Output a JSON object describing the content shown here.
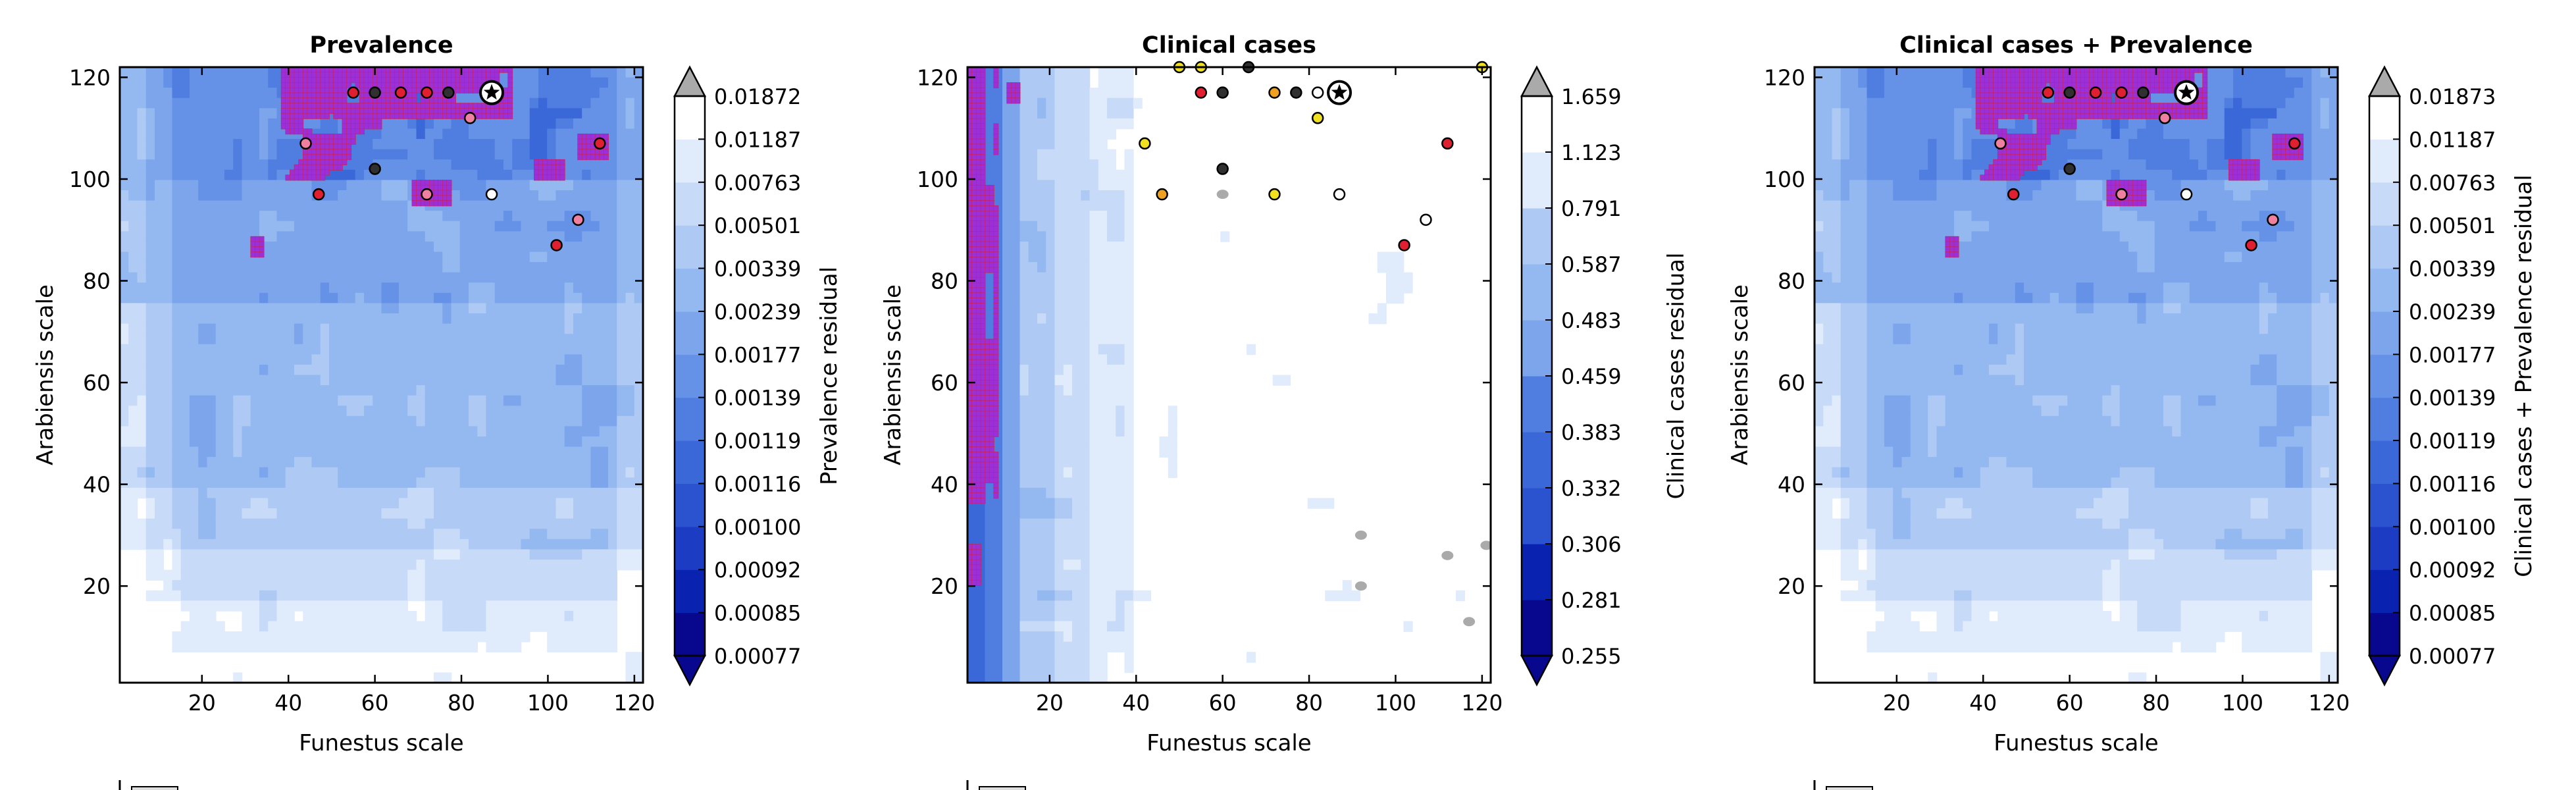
{
  "palette": [
    "#08088e",
    "#0a22b0",
    "#1c3cc4",
    "#2b53d0",
    "#3b68d8",
    "#4f7ee0",
    "#6592e6",
    "#7ca5ec",
    "#94b8f0",
    "#adc9f4",
    "#c7daf8",
    "#e0ebfb",
    "#ffffff"
  ],
  "colors": {
    "over_color": "#aaaaaa",
    "under_color": "#08088e",
    "region_fill": "#9b30d8",
    "region_edge": "#d0204a",
    "marker_yellow": "#f0e020",
    "marker_orange": "#f0a020",
    "marker_red": "#e02030",
    "marker_pink": "#f080a0",
    "marker_dark": "#303030",
    "marker_white": "#ffffff",
    "marker_gray": "#a0a0a0"
  },
  "chart_data": [
    {
      "type": "heatmap",
      "title": "Prevalence",
      "xlabel": "Funestus scale",
      "ylabel": "Arabiensis scale",
      "xlim": [
        1,
        122
      ],
      "ylim": [
        1,
        122
      ],
      "xticks": [
        "20",
        "40",
        "60",
        "80",
        "100",
        "120"
      ],
      "yticks": [
        "20",
        "40",
        "60",
        "80",
        "100",
        "120"
      ],
      "colorbar_label": "Prevalence residual",
      "colorbar_ticks": [
        "0.00077",
        "0.00085",
        "0.00092",
        "0.00100",
        "0.00116",
        "0.00119",
        "0.00139",
        "0.00177",
        "0.00239",
        "0.00339",
        "0.00501",
        "0.00763",
        "0.01187",
        "0.01872"
      ],
      "field": "prevalence",
      "best_fit": [
        87,
        117
      ],
      "markers": [
        {
          "x": 44,
          "y": 107,
          "c": "marker_pink"
        },
        {
          "x": 47,
          "y": 97,
          "c": "marker_red"
        },
        {
          "x": 55,
          "y": 117,
          "c": "marker_red"
        },
        {
          "x": 60,
          "y": 102,
          "c": "marker_dark"
        },
        {
          "x": 60,
          "y": 117,
          "c": "marker_dark"
        },
        {
          "x": 66,
          "y": 117,
          "c": "marker_red"
        },
        {
          "x": 72,
          "y": 97,
          "c": "marker_pink"
        },
        {
          "x": 77,
          "y": 117,
          "c": "marker_dark"
        },
        {
          "x": 82,
          "y": 112,
          "c": "marker_pink"
        },
        {
          "x": 87,
          "y": 97,
          "c": "marker_white"
        },
        {
          "x": 102,
          "y": 87,
          "c": "marker_red"
        },
        {
          "x": 107,
          "y": 92,
          "c": "marker_pink"
        },
        {
          "x": 112,
          "y": 107,
          "c": "marker_red"
        },
        {
          "x": 72,
          "y": 117,
          "c": "marker_red"
        }
      ],
      "legend_text": ""
    },
    {
      "type": "heatmap",
      "title": "Clinical cases",
      "xlabel": "Funestus scale",
      "ylabel": "Arabiensis scale",
      "xlim": [
        1,
        122
      ],
      "ylim": [
        1,
        122
      ],
      "xticks": [
        "20",
        "40",
        "60",
        "80",
        "100",
        "120"
      ],
      "yticks": [
        "20",
        "40",
        "60",
        "80",
        "100",
        "120"
      ],
      "colorbar_label": "Clinical cases residual",
      "colorbar_ticks": [
        "0.255",
        "0.281",
        "0.306",
        "0.332",
        "0.383",
        "0.459",
        "0.483",
        "0.587",
        "0.791",
        "1.123",
        "1.659"
      ],
      "field": "clinical",
      "best_fit": [
        87,
        117
      ],
      "markers": [
        {
          "x": 42,
          "y": 107,
          "c": "marker_yellow"
        },
        {
          "x": 46,
          "y": 97,
          "c": "marker_orange"
        },
        {
          "x": 55,
          "y": 117,
          "c": "marker_red"
        },
        {
          "x": 60,
          "y": 117,
          "c": "marker_dark"
        },
        {
          "x": 60,
          "y": 102,
          "c": "marker_dark"
        },
        {
          "x": 72,
          "y": 117,
          "c": "marker_orange"
        },
        {
          "x": 72,
          "y": 97,
          "c": "marker_yellow"
        },
        {
          "x": 77,
          "y": 117,
          "c": "marker_dark"
        },
        {
          "x": 82,
          "y": 117,
          "c": "marker_white"
        },
        {
          "x": 82,
          "y": 112,
          "c": "marker_yellow"
        },
        {
          "x": 87,
          "y": 97,
          "c": "marker_white"
        },
        {
          "x": 102,
          "y": 87,
          "c": "marker_red"
        },
        {
          "x": 107,
          "y": 92,
          "c": "marker_white"
        },
        {
          "x": 112,
          "y": 107,
          "c": "marker_red"
        },
        {
          "x": 50,
          "y": 122,
          "c": "marker_yellow"
        },
        {
          "x": 55,
          "y": 122,
          "c": "marker_yellow"
        },
        {
          "x": 66,
          "y": 122,
          "c": "marker_dark"
        },
        {
          "x": 120,
          "y": 122,
          "c": "marker_yellow"
        }
      ],
      "legend_text": ""
    },
    {
      "type": "heatmap",
      "title": "Clinical cases + Prevalence",
      "xlabel": "Funestus scale",
      "ylabel": "Arabiensis scale",
      "xlim": [
        1,
        122
      ],
      "ylim": [
        1,
        122
      ],
      "xticks": [
        "20",
        "40",
        "60",
        "80",
        "100",
        "120"
      ],
      "yticks": [
        "20",
        "40",
        "60",
        "80",
        "100",
        "120"
      ],
      "colorbar_label": "Clinical cases + Prevalence residual",
      "colorbar_ticks": [
        "0.00077",
        "0.00085",
        "0.00092",
        "0.00100",
        "0.00116",
        "0.00119",
        "0.00139",
        "0.00177",
        "0.00239",
        "0.00339",
        "0.00501",
        "0.00763",
        "0.01187",
        "0.01873"
      ],
      "field": "prevalence",
      "best_fit": [
        87,
        117
      ],
      "markers": [
        {
          "x": 44,
          "y": 107,
          "c": "marker_pink"
        },
        {
          "x": 47,
          "y": 97,
          "c": "marker_red"
        },
        {
          "x": 55,
          "y": 117,
          "c": "marker_red"
        },
        {
          "x": 60,
          "y": 102,
          "c": "marker_dark"
        },
        {
          "x": 60,
          "y": 117,
          "c": "marker_dark"
        },
        {
          "x": 66,
          "y": 117,
          "c": "marker_red"
        },
        {
          "x": 72,
          "y": 97,
          "c": "marker_pink"
        },
        {
          "x": 77,
          "y": 117,
          "c": "marker_dark"
        },
        {
          "x": 82,
          "y": 112,
          "c": "marker_pink"
        },
        {
          "x": 87,
          "y": 97,
          "c": "marker_white"
        },
        {
          "x": 102,
          "y": 87,
          "c": "marker_red"
        },
        {
          "x": 107,
          "y": 92,
          "c": "marker_pink"
        },
        {
          "x": 112,
          "y": 107,
          "c": "marker_red"
        },
        {
          "x": 72,
          "y": 117,
          "c": "marker_red"
        }
      ],
      "legend_text": ""
    }
  ]
}
